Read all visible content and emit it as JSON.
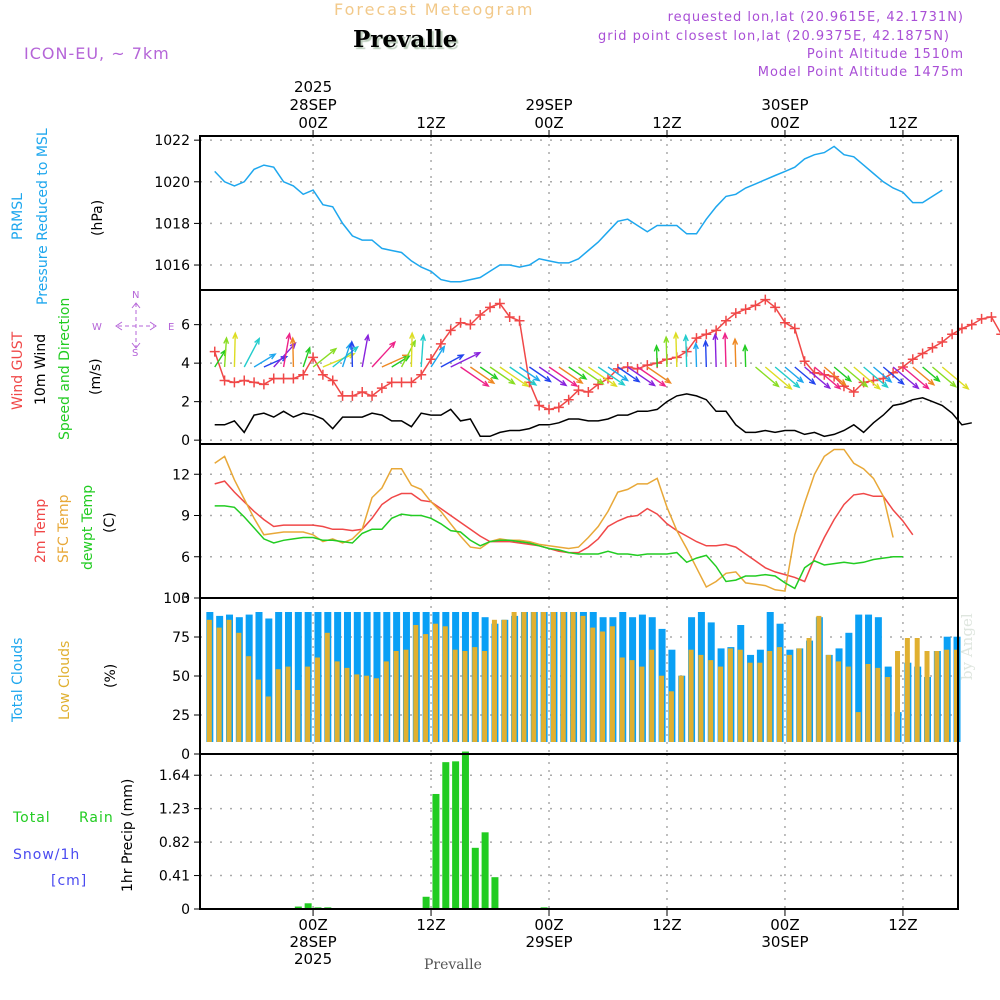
{
  "header": {
    "title": "Forecast Meteogram",
    "station": "Prevalle",
    "model": "ICON-EU, ~ 7km",
    "requested": "requested lon,lat (20.9615E, 42.1731N)",
    "gridpoint": "grid point closest lon,lat (20.9375E, 42.1875N)",
    "point_altitude": "Point Altitude 1510m",
    "model_altitude": "Model Point Altitude 1475m"
  },
  "footer": {
    "station": "Prevalle",
    "watermark": "by Angel"
  },
  "time_axis": {
    "top_ticks": [
      {
        "hour": 0,
        "lines": [
          "2025",
          "28SEP",
          "00Z"
        ]
      },
      {
        "hour": 12,
        "lines": [
          "12Z"
        ]
      },
      {
        "hour": 24,
        "lines": [
          "29SEP",
          "00Z"
        ]
      },
      {
        "hour": 36,
        "lines": [
          "12Z"
        ]
      },
      {
        "hour": 48,
        "lines": [
          "30SEP",
          "00Z"
        ]
      },
      {
        "hour": 60,
        "lines": [
          "12Z"
        ]
      }
    ],
    "bottom_ticks": [
      {
        "hour": 0,
        "lines": [
          "00Z",
          "28SEP",
          "2025"
        ]
      },
      {
        "hour": 12,
        "lines": [
          "12Z"
        ]
      },
      {
        "hour": 24,
        "lines": [
          "00Z",
          "29SEP"
        ]
      },
      {
        "hour": 36,
        "lines": [
          "12Z"
        ]
      },
      {
        "hour": 48,
        "lines": [
          "00Z",
          "30SEP"
        ]
      },
      {
        "hour": 60,
        "lines": [
          "12Z"
        ]
      }
    ],
    "range_hours": [
      -11.5,
      65.6
    ]
  },
  "panel_labels": {
    "pressure": [
      "PRMSL",
      "Pressure Reduced to MSL",
      "(hPa)"
    ],
    "wind": [
      "Wind GUST",
      "10m Wind",
      "Speed and Direction",
      "(m/s)"
    ],
    "compass": {
      "n": "N",
      "s": "S",
      "w": "W",
      "e": "E"
    },
    "temp": [
      "2m Temp",
      "SFC Temp",
      "dewpt Temp",
      "(C)"
    ],
    "clouds": [
      "Total Clouds",
      "Low Clouds",
      "(%)"
    ],
    "precip": [
      "Total",
      "Rain",
      "Snow/1h",
      "[cm]",
      "1hr Precip (mm)"
    ]
  },
  "colors": {
    "pressure": "#1ea7ee",
    "gust": "#f04848",
    "wind10m": "#000000",
    "temp2m": "#f04848",
    "sfc": "#e8a838",
    "dewpt": "#22cc22",
    "total_clouds": "#0aa0f5",
    "low_clouds": "#e0b030",
    "rain": "#22cc22",
    "snow": "#4a4af0",
    "label_blue": "#1ea7ee",
    "label_purple": "#b565d8"
  },
  "chart_data": [
    {
      "type": "line",
      "title": "PRMSL Pressure Reduced to MSL",
      "ylabel": "(hPa)",
      "ylim": [
        1014.8,
        1022.2
      ],
      "yticks": [
        1016,
        1018,
        1020,
        1022
      ],
      "x_start_hour": -10,
      "series": [
        {
          "name": "PRMSL",
          "values": [
            1020.5,
            1020.0,
            1019.8,
            1020.0,
            1020.6,
            1020.8,
            1020.7,
            1020.0,
            1019.8,
            1019.4,
            1019.6,
            1018.9,
            1018.8,
            1018.0,
            1017.4,
            1017.2,
            1017.2,
            1016.8,
            1016.7,
            1016.6,
            1016.2,
            1015.9,
            1015.7,
            1015.3,
            1015.2,
            1015.2,
            1015.3,
            1015.4,
            1015.7,
            1016.0,
            1016.0,
            1015.9,
            1016.0,
            1016.3,
            1016.2,
            1016.1,
            1016.1,
            1016.3,
            1016.7,
            1017.1,
            1017.6,
            1018.1,
            1018.2,
            1017.9,
            1017.6,
            1017.9,
            1017.9,
            1017.9,
            1017.5,
            1017.5,
            1018.2,
            1018.8,
            1019.3,
            1019.4,
            1019.7,
            1019.9,
            1020.1,
            1020.3,
            1020.5,
            1020.7,
            1021.1,
            1021.3,
            1021.4,
            1021.7,
            1021.3,
            1021.2,
            1020.8,
            1020.4,
            1020.0,
            1019.7,
            1019.5,
            1019.0,
            1019.0,
            1019.3,
            1019.6
          ]
        }
      ]
    },
    {
      "type": "line",
      "title": "Wind GUST / 10m Wind Speed and Direction",
      "ylabel": "(m/s)",
      "ylim": [
        -0.2,
        7.8
      ],
      "yticks": [
        0,
        2,
        4,
        6
      ],
      "x_start_hour": -10,
      "series": [
        {
          "name": "Wind GUST",
          "marker": "plus",
          "values": [
            4.6,
            3.1,
            3.0,
            3.1,
            3.0,
            2.9,
            3.2,
            3.2,
            3.2,
            3.4,
            4.3,
            3.4,
            3.1,
            2.3,
            2.3,
            2.5,
            2.3,
            2.7,
            3.0,
            3.0,
            3.0,
            3.4,
            4.2,
            5.0,
            5.7,
            6.1,
            6.0,
            6.5,
            6.9,
            7.1,
            6.4,
            6.2,
            3.0,
            1.8,
            1.6,
            1.7,
            2.1,
            2.6,
            2.5,
            2.9,
            3.2,
            3.7,
            3.8,
            3.7,
            3.9,
            4.0,
            4.2,
            4.3,
            4.6,
            5.3,
            5.5,
            5.7,
            6.2,
            6.6,
            6.8,
            7.0,
            7.3,
            6.9,
            6.1,
            5.8,
            4.1,
            3.5,
            3.4,
            3.3,
            2.8,
            2.5,
            3.0,
            3.1,
            3.2,
            3.5,
            3.8,
            4.2,
            4.5,
            4.8,
            5.1,
            5.5,
            5.8,
            6.0,
            6.3,
            6.4,
            5.5,
            4.6,
            3.8
          ]
        },
        {
          "name": "10m Wind",
          "values": [
            0.8,
            0.8,
            1.0,
            0.4,
            1.3,
            1.4,
            1.2,
            1.5,
            1.2,
            1.4,
            1.3,
            1.1,
            0.6,
            1.2,
            1.2,
            1.2,
            1.4,
            1.3,
            1.0,
            1.0,
            0.7,
            1.4,
            1.3,
            1.3,
            1.6,
            1.0,
            1.1,
            0.2,
            0.2,
            0.4,
            0.5,
            0.5,
            0.6,
            0.8,
            0.8,
            0.9,
            1.1,
            1.1,
            1.0,
            1.0,
            1.1,
            1.3,
            1.3,
            1.5,
            1.5,
            1.6,
            2.0,
            2.3,
            2.4,
            2.3,
            2.1,
            1.5,
            1.5,
            0.8,
            0.4,
            0.4,
            0.5,
            0.4,
            0.5,
            0.5,
            0.3,
            0.4,
            0.2,
            0.3,
            0.5,
            0.8,
            0.4,
            0.9,
            1.3,
            1.8,
            1.9,
            2.1,
            2.2,
            2.0,
            1.8,
            1.4,
            0.8,
            0.9
          ]
        }
      ]
    },
    {
      "type": "line",
      "title": "2m Temp / SFC Temp / dewpt Temp",
      "ylabel": "(C)",
      "ylim": [
        3,
        14.2
      ],
      "yticks": [
        3,
        6,
        9,
        12
      ],
      "x_start_hour": -10,
      "series": [
        {
          "name": "2m Temp",
          "values": [
            11.3,
            11.5,
            10.7,
            10.0,
            9.3,
            8.7,
            8.2,
            8.3,
            8.3,
            8.3,
            8.3,
            8.2,
            8.0,
            8.0,
            7.9,
            8.0,
            8.8,
            9.8,
            10.3,
            10.6,
            10.6,
            10.1,
            10.0,
            9.5,
            9.0,
            8.5,
            8.0,
            7.5,
            7.1,
            7.1,
            7.1,
            7.0,
            6.9,
            6.8,
            6.6,
            6.4,
            6.3,
            6.3,
            6.7,
            7.3,
            8.2,
            8.6,
            8.9,
            9.0,
            9.5,
            9.1,
            8.4,
            7.9,
            7.5,
            7.1,
            6.8,
            6.8,
            6.9,
            6.7,
            6.2,
            5.7,
            5.2,
            4.9,
            4.7,
            4.5,
            4.2,
            5.9,
            7.4,
            8.7,
            9.8,
            10.5,
            10.6,
            10.4,
            10.4,
            9.4,
            8.6,
            7.6
          ]
        },
        {
          "name": "SFC Temp",
          "values": [
            12.8,
            13.3,
            11.6,
            10.2,
            8.8,
            7.6,
            7.7,
            7.8,
            7.8,
            7.8,
            7.6,
            7.1,
            7.3,
            7.0,
            7.3,
            8.0,
            10.3,
            11.0,
            12.4,
            12.4,
            11.2,
            10.9,
            10.0,
            9.3,
            8.4,
            7.5,
            6.7,
            6.6,
            7.1,
            7.3,
            7.2,
            7.2,
            7.1,
            6.9,
            6.8,
            6.7,
            6.6,
            6.7,
            7.4,
            8.2,
            9.3,
            10.7,
            10.9,
            11.3,
            11.3,
            11.7,
            9.6,
            7.9,
            6.6,
            5.2,
            3.8,
            4.2,
            4.8,
            4.9,
            4.1,
            4.0,
            3.9,
            3.6,
            3.5,
            7.6,
            9.9,
            12.0,
            13.3,
            13.8,
            13.8,
            12.8,
            12.4,
            11.7,
            10.4,
            7.4
          ]
        },
        {
          "name": "dewpt Temp",
          "values": [
            9.7,
            9.7,
            9.6,
            8.9,
            8.1,
            7.3,
            7.0,
            7.2,
            7.3,
            7.4,
            7.4,
            7.2,
            7.2,
            7.1,
            7.0,
            7.7,
            8.0,
            8.0,
            8.8,
            9.1,
            9.0,
            9.0,
            8.8,
            8.4,
            7.9,
            7.8,
            7.2,
            6.8,
            7.1,
            7.2,
            7.2,
            7.1,
            7.0,
            6.8,
            6.6,
            6.5,
            6.3,
            6.2,
            6.2,
            6.2,
            6.4,
            6.2,
            6.2,
            6.1,
            6.2,
            6.2,
            6.2,
            6.3,
            5.6,
            5.9,
            6.1,
            5.3,
            4.2,
            4.3,
            4.6,
            4.6,
            4.7,
            4.6,
            4.1,
            3.7,
            5.2,
            5.7,
            5.4,
            5.5,
            5.6,
            5.5,
            5.6,
            5.8,
            5.9,
            6.0,
            6.0
          ]
        }
      ]
    },
    {
      "type": "bar",
      "title": "Total Clouds / Low Clouds",
      "ylabel": "(%)",
      "ylim": [
        0,
        100
      ],
      "yticks": [
        0,
        25,
        50,
        75,
        100
      ],
      "x_start_hour": -11,
      "series": [
        {
          "name": "Total Clouds",
          "values": [
            100,
            97,
            98,
            96,
            98,
            100,
            95,
            100,
            100,
            100,
            100,
            100,
            100,
            100,
            100,
            100,
            100,
            100,
            100,
            100,
            100,
            100,
            100,
            100,
            100,
            100,
            100,
            100,
            96,
            91,
            94,
            97,
            100,
            100,
            100,
            100,
            100,
            100,
            100,
            100,
            96,
            96,
            100,
            96,
            98,
            96,
            87,
            71,
            51,
            96,
            100,
            92,
            72,
            73,
            90,
            67,
            71,
            100,
            91,
            71,
            72,
            78,
            96,
            67,
            72,
            84,
            98,
            98,
            96,
            58,
            23,
            61,
            58,
            50,
            70,
            81,
            81,
            71,
            94,
            94,
            100,
            89
          ]
        },
        {
          "name": "Low Clouds",
          "values": [
            94,
            88,
            94,
            84,
            66,
            48,
            35,
            56,
            58,
            40,
            58,
            65,
            84,
            62,
            57,
            52,
            51,
            49,
            62,
            70,
            71,
            90,
            83,
            91,
            89,
            71,
            70,
            73,
            70,
            94,
            94,
            100,
            100,
            100,
            100,
            100,
            100,
            100,
            97,
            88,
            85,
            89,
            65,
            63,
            58,
            71,
            51,
            39,
            51,
            71,
            67,
            63,
            58,
            72,
            71,
            61,
            61,
            70,
            73,
            67,
            72,
            80,
            97,
            67,
            62,
            58,
            23,
            60,
            57,
            50,
            70,
            80,
            80,
            70,
            70,
            71,
            71,
            74
          ]
        }
      ]
    },
    {
      "type": "bar",
      "title": "1hr Precip",
      "ylabel": "1hr Precip (mm)",
      "ylim": [
        0,
        1.9
      ],
      "yticks": [
        0,
        0.41,
        0.82,
        1.23,
        1.64
      ],
      "x_start_hour": -11,
      "series": [
        {
          "name": "Total Rain",
          "values": [
            0,
            0,
            0,
            0,
            0,
            0,
            0,
            0,
            0,
            0.03,
            0.07,
            0.02,
            0.02,
            0,
            0,
            0,
            0,
            0,
            0,
            0,
            0,
            0,
            0.15,
            1.41,
            1.8,
            1.81,
            1.93,
            0.75,
            0.94,
            0.39,
            0,
            0,
            0,
            0,
            0.02,
            0,
            0,
            0,
            0,
            0,
            0,
            0.01,
            0,
            0,
            0,
            0,
            0,
            0,
            0,
            0,
            0,
            0,
            0,
            0,
            0,
            0,
            0,
            0,
            0.01,
            0.01,
            0,
            0,
            0,
            0,
            0,
            0,
            0.01,
            0,
            0,
            0,
            0,
            0,
            0,
            0,
            0,
            0,
            0,
            0
          ]
        }
      ]
    }
  ]
}
